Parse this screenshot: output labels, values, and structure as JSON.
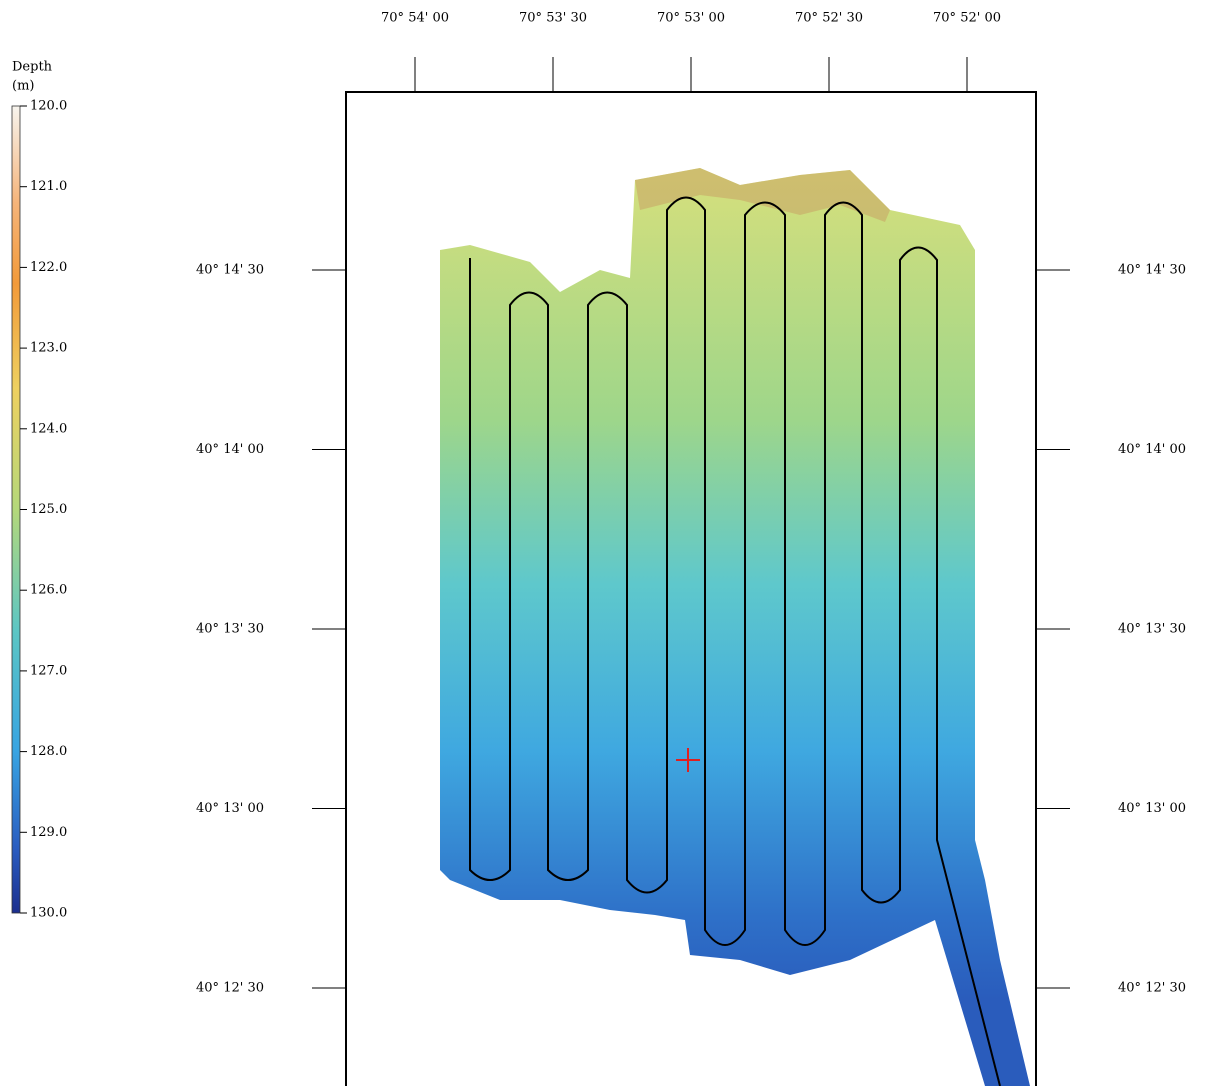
{
  "colorbar": {
    "title": "Depth",
    "unit": "(m)",
    "ticks": [
      "120.0",
      "121.0",
      "122.0",
      "123.0",
      "124.0",
      "125.0",
      "126.0",
      "127.0",
      "128.0",
      "129.0",
      "130.0"
    ]
  },
  "longitude_labels": [
    "70° 54' 00",
    "70° 53' 30",
    "70° 53' 00",
    "70° 52' 30",
    "70° 52' 00"
  ],
  "latitude_labels": [
    "40° 14' 30",
    "40° 14' 00",
    "40° 13' 30",
    "40° 13' 00",
    "40° 12' 30"
  ]
}
